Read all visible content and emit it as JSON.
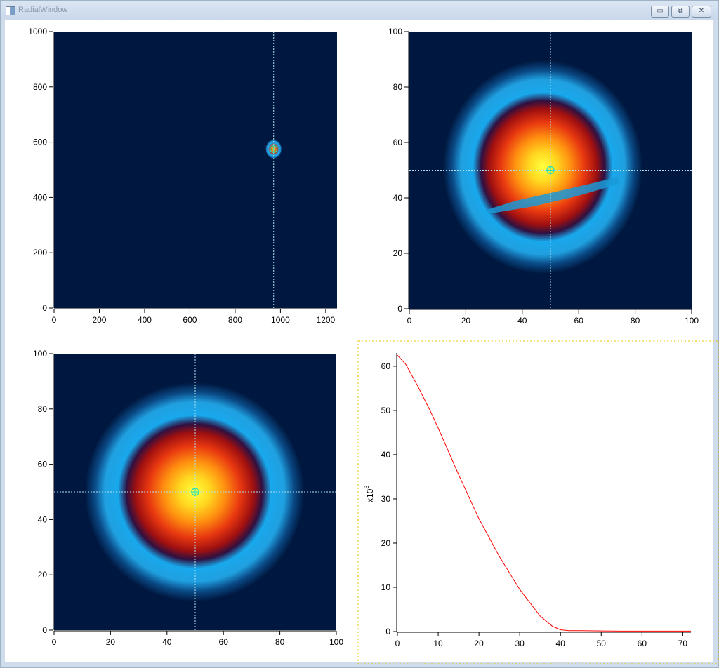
{
  "window": {
    "title": "RadialWindow",
    "buttons": {
      "minimize": "▭",
      "maximize": "⧉",
      "close": "✕"
    }
  },
  "plots": {
    "top_left": {
      "type": "heatmap",
      "x_ticks": [
        "0",
        "200",
        "400",
        "600",
        "800",
        "1000",
        "1200"
      ],
      "y_ticks": [
        "0",
        "200",
        "400",
        "600",
        "800",
        "1000"
      ],
      "xlim": [
        0,
        1250
      ],
      "ylim": [
        0,
        1000
      ],
      "crosshair": {
        "x": 970,
        "y": 575
      },
      "spot": {
        "x": 970,
        "y": 575
      }
    },
    "top_right": {
      "type": "heatmap",
      "x_ticks": [
        "0",
        "20",
        "40",
        "60",
        "80",
        "100"
      ],
      "y_ticks": [
        "0",
        "20",
        "40",
        "60",
        "80",
        "100"
      ],
      "xlim": [
        0,
        100
      ],
      "ylim": [
        0,
        100
      ],
      "crosshair": {
        "x": 50,
        "y": 50
      }
    },
    "bottom_left": {
      "type": "heatmap",
      "x_ticks": [
        "0",
        "20",
        "40",
        "60",
        "80",
        "100"
      ],
      "y_ticks": [
        "0",
        "20",
        "40",
        "60",
        "80",
        "100"
      ],
      "xlim": [
        0,
        100
      ],
      "ylim": [
        0,
        100
      ],
      "crosshair": {
        "x": 50,
        "y": 50
      }
    },
    "bottom_right": {
      "type": "line",
      "x_ticks": [
        "0",
        "10",
        "20",
        "30",
        "40",
        "50",
        "60",
        "70"
      ],
      "y_ticks": [
        "0",
        "10",
        "20",
        "30",
        "40",
        "50",
        "60"
      ],
      "ylabel": "x10",
      "ylabel_exponent": "3",
      "line_color": "#ff0000"
    }
  },
  "chart_data": {
    "type": "line",
    "xlim": [
      0,
      72
    ],
    "ylim": [
      0,
      63
    ],
    "x": [
      0,
      2,
      5,
      8,
      10,
      15,
      20,
      25,
      30,
      35,
      38,
      40,
      42,
      45,
      50,
      55,
      60,
      65,
      72
    ],
    "y": [
      62.5,
      60.5,
      55.5,
      50,
      46,
      35.5,
      25.5,
      17,
      9.5,
      3.5,
      1.2,
      0.4,
      0.2,
      0.2,
      0.15,
      0.1,
      0.1,
      0.1,
      0.1
    ]
  },
  "colors": {
    "background": "#001840",
    "crosshair": "#b0e0f0",
    "ring": "#24a8e8",
    "hot": "#ffff40"
  }
}
